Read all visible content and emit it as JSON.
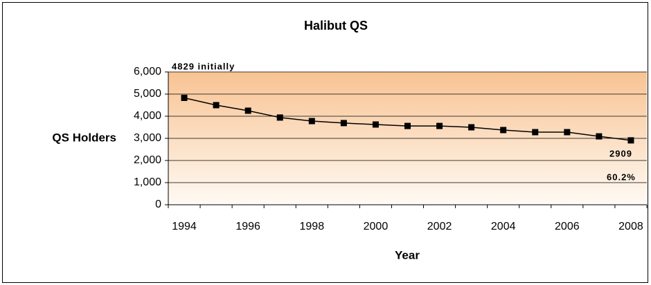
{
  "chart_data": {
    "type": "line",
    "title": "Halibut QS",
    "x_label": "Year",
    "y_label": "QS Holders",
    "categories": [
      "1994",
      null,
      "1996",
      null,
      "1998",
      null,
      "2000",
      null,
      "2002",
      null,
      "2004",
      null,
      "2006",
      null,
      "2008"
    ],
    "series": [
      {
        "name": "QS Holders",
        "color": "#000000",
        "values": [
          4829,
          4500,
          4250,
          3940,
          3780,
          3690,
          3625,
          3560,
          3560,
          3500,
          3375,
          3280,
          3280,
          3090,
          2909
        ]
      }
    ],
    "ylim": [
      0,
      6000
    ],
    "yticks": [
      0,
      {
        "value": 1000,
        "label": "1,000"
      },
      {
        "value": 2000,
        "label": "2,000"
      },
      {
        "value": 3000,
        "label": "3,000"
      },
      {
        "value": 4000,
        "label": "4,000"
      },
      {
        "value": 5000,
        "label": "5,000"
      },
      {
        "value": 6000,
        "label": "6,000"
      }
    ],
    "grid": true,
    "annotations": [
      "4829 initially",
      "2909",
      "60.2%"
    ]
  }
}
